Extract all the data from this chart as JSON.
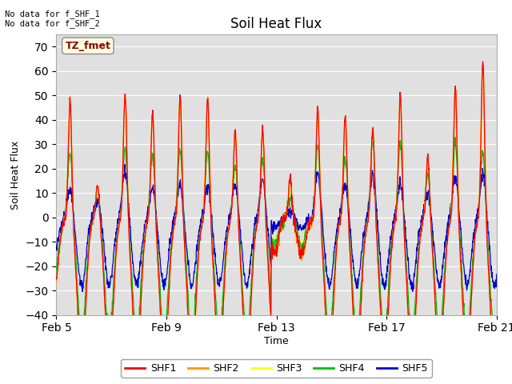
{
  "title": "Soil Heat Flux",
  "ylabel": "Soil Heat Flux",
  "xlabel": "Time",
  "ylim": [
    -40,
    75
  ],
  "yticks": [
    -40,
    -30,
    -20,
    -10,
    0,
    10,
    20,
    30,
    40,
    50,
    60,
    70
  ],
  "background_color": "#ffffff",
  "plot_bg_color": "#e0e0e0",
  "annotation_top": "No data for f_SHF_1\nNo data for f_SHF_2",
  "annotation_box": "TZ_fmet",
  "series_colors": {
    "SHF1": "#ff0000",
    "SHF2": "#ff9900",
    "SHF3": "#ffff00",
    "SHF4": "#00bb00",
    "SHF5": "#0000cc"
  },
  "legend_labels": [
    "SHF1",
    "SHF2",
    "SHF3",
    "SHF4",
    "SHF5"
  ],
  "x_tick_labels": [
    "Feb 5",
    "Feb 9",
    "Feb 13",
    "Feb 17",
    "Feb 21"
  ],
  "x_tick_positions": [
    0,
    4,
    8,
    12,
    16
  ],
  "days": 16,
  "points_per_day": 96
}
